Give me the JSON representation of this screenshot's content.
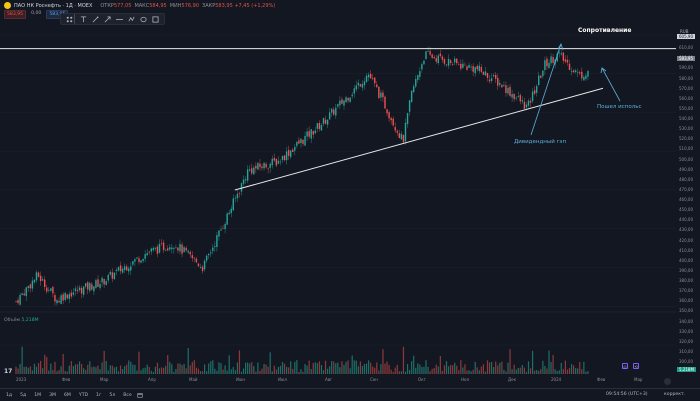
{
  "header": {
    "symbol_name": "ПАО НК Роснефть · 1Д · MOEX",
    "ohlc": [
      {
        "k": "ОТКР",
        "v": "577,05"
      },
      {
        "k": "МАКС",
        "v": "584,95"
      },
      {
        "k": "МИН",
        "v": "576,90"
      },
      {
        "k": "ЗАКР",
        "v": "583,95 +7,45 (+1,29%)"
      }
    ],
    "sell_price": "583,95",
    "spread": "0,00",
    "buy_price": "583,95"
  },
  "toolbar": {
    "tools": [
      "cursor-icon",
      "text-icon",
      "brush-icon",
      "arrow-icon",
      "hline-icon",
      "path-icon",
      "ellipse-icon",
      "rectangle-icon"
    ]
  },
  "price_axis": {
    "currency": "RUB",
    "ticks": [
      "620,00",
      "610,00",
      "600,00",
      "590,00",
      "580,00",
      "570,00",
      "560,00",
      "550,00",
      "540,00",
      "530,00",
      "520,00",
      "510,00",
      "500,00",
      "490,00",
      "480,00",
      "470,00",
      "460,00",
      "450,00",
      "440,00",
      "430,00",
      "420,00",
      "410,00",
      "400,00",
      "390,00",
      "380,00",
      "370,00",
      "360,00",
      "350,00",
      "340,00",
      "330,00",
      "320,00",
      "310,00",
      "300,00"
    ],
    "last_price": "583,95",
    "resistance_price": "605,90",
    "volume_tag": "5,218M"
  },
  "annotations": {
    "resistance": "Сопротивление",
    "dividend_gap": "Дивидендный гэп",
    "went_upward": "Пошел испольс"
  },
  "volume": {
    "label": "Объём",
    "value": "5,218M"
  },
  "time_axis": {
    "ticks": [
      "2023",
      "Фев",
      "Мар",
      "Апр",
      "Май",
      "Июн",
      "Июл",
      "Авг",
      "Сен",
      "Окт",
      "Ноя",
      "Дек",
      "2024",
      "Фев",
      "Мар"
    ]
  },
  "bottom_bar": {
    "ranges": [
      "1д",
      "5д",
      "1М",
      "3М",
      "6М",
      "YTD",
      "1г",
      "5л",
      "Все"
    ],
    "time": "09:54:56 (UTC+3)",
    "correction": "коррект."
  },
  "colors": {
    "up": "#26a69a",
    "down": "#ef5350",
    "background": "#131722",
    "annotation": "#5bb0d8"
  },
  "chart_data": {
    "type": "candlestick",
    "anchors": [
      {
        "x": "2023-01",
        "close": 345
      },
      {
        "x": "2023-01-16",
        "close": 372
      },
      {
        "x": "2023-01-30",
        "close": 345
      },
      {
        "x": "2023-02",
        "close": 350
      },
      {
        "x": "2023-03",
        "close": 365
      },
      {
        "x": "2023-04",
        "close": 395
      },
      {
        "x": "2023-04-20",
        "close": 405
      },
      {
        "x": "2023-05-10",
        "close": 380
      },
      {
        "x": "2023-06",
        "close": 450
      },
      {
        "x": "2023-06-10",
        "close": 480
      },
      {
        "x": "2023-07",
        "close": 490
      },
      {
        "x": "2023-08",
        "close": 530
      },
      {
        "x": "2023-08-20",
        "close": 560
      },
      {
        "x": "2023-09",
        "close": 580
      },
      {
        "x": "2023-09-10",
        "close": 555
      },
      {
        "x": "2023-09-25",
        "close": 510
      },
      {
        "x": "2023-10",
        "close": 560
      },
      {
        "x": "2023-10-10",
        "close": 600
      },
      {
        "x": "2023-11",
        "close": 590
      },
      {
        "x": "2023-11-15",
        "close": 585
      },
      {
        "x": "2023-12",
        "close": 570
      },
      {
        "x": "2023-12-20",
        "close": 545
      },
      {
        "x": "2024-01",
        "close": 590
      },
      {
        "x": "2024-01-10",
        "close": 600
      },
      {
        "x": "2024-01-25",
        "close": 578
      },
      {
        "x": "2024-02",
        "close": 584
      }
    ],
    "resistance_level": 605.9,
    "support_line": [
      {
        "x": "2023-06",
        "y": 460
      },
      {
        "x": "2024-02-10",
        "y": 565
      }
    ],
    "ylim": [
      300,
      625
    ]
  }
}
